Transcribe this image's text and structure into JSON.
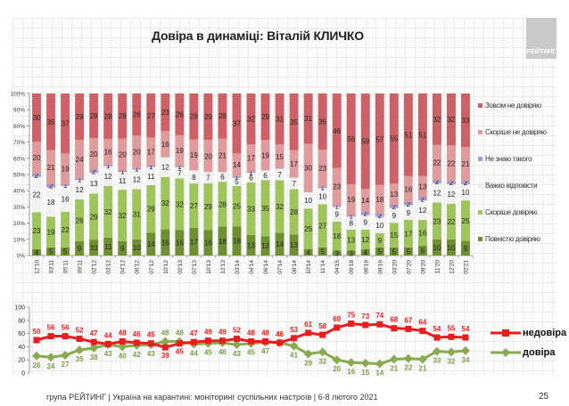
{
  "header": {
    "title": "Довіра в динаміці: Віталій КЛИЧКО",
    "logo_text": "РЕЙТИНГ"
  },
  "footer": {
    "text": "група РЕЙТИНГ | Україна на карантині: моніторинг суспільних настроїв | 6-8 лютого 2021",
    "page_number": "25"
  },
  "colors": {
    "fully_distrust": "#cd6266",
    "rather_distrust": "#e09b9c",
    "dont_know": "#a99ad0",
    "hard_to_say": "#f1f1f1",
    "rather_trust": "#9dc55a",
    "fully_trust": "#6f8f33",
    "line_distrust": "#e81e1e",
    "line_trust": "#8aaa52"
  },
  "chart_data": [
    {
      "type": "bar",
      "stacked": true,
      "percent_stacked": true,
      "title": "Довіра в динаміці: Віталій КЛИЧКО",
      "yticks": [
        "0%",
        "10%",
        "20%",
        "30%",
        "40%",
        "50%",
        "60%",
        "70%",
        "80%",
        "90%",
        "100%"
      ],
      "ylim": [
        0,
        100
      ],
      "legend_position": "right",
      "categories": [
        "12'10",
        "03'11",
        "05'11",
        "09'11",
        "02'12",
        "03'12",
        "04'12",
        "06'12",
        "07'12",
        "10'12",
        "02'13",
        "07'13",
        "10'13",
        "12'13",
        "03'14",
        "04'14",
        "06'14",
        "07'14",
        "08'14",
        "10'14",
        "11'14",
        "04'15",
        "09'18",
        "06'19",
        "09'19",
        "03'20",
        "07'20",
        "09'20",
        "11'20",
        "12'20",
        "02'21"
      ],
      "series": [
        {
          "name": "Повністю довіряю",
          "key": "fully_trust",
          "values": [
            4,
            5,
            5,
            9,
            10,
            11,
            9,
            10,
            14,
            16,
            16,
            17,
            16,
            18,
            18,
            13,
            12,
            14,
            13,
            4,
            5,
            3,
            3,
            4,
            5,
            5,
            5,
            6,
            10,
            10,
            9
          ]
        },
        {
          "name": "Скоріше довіряю",
          "key": "rather_trust",
          "values": [
            23,
            19,
            22,
            26,
            29,
            32,
            32,
            31,
            29,
            32,
            32,
            27,
            29,
            28,
            25,
            33,
            35,
            32,
            28,
            25,
            27,
            18,
            13,
            12,
            9,
            15,
            17,
            16,
            23,
            22,
            25
          ]
        },
        {
          "name": "Важко відповісти",
          "key": "hard_to_say",
          "values": [
            22,
            18,
            16,
            12,
            13,
            12,
            11,
            12,
            11,
            12,
            7,
            8,
            7,
            6,
            5,
            6,
            6,
            7,
            7,
            10,
            10,
            9,
            8,
            9,
            10,
            9,
            9,
            12,
            12,
            12,
            10
          ]
        },
        {
          "name": "Не знаю такого",
          "key": "dont_know",
          "values": [
            2,
            2,
            1,
            1,
            2,
            1,
            1,
            1,
            1,
            0,
            1,
            0,
            0,
            0,
            1,
            1,
            0,
            0,
            0,
            0,
            1,
            1,
            1,
            2,
            2,
            2,
            2,
            2,
            2,
            2,
            2
          ]
        },
        {
          "name": "Скоріше не довіряю",
          "key": "rather_distrust",
          "values": [
            20,
            21,
            19,
            24,
            20,
            16,
            20,
            20,
            17,
            16,
            19,
            19,
            20,
            21,
            14,
            17,
            19,
            15,
            17,
            30,
            23,
            23,
            19,
            14,
            18,
            13,
            16,
            13,
            22,
            22,
            21
          ]
        },
        {
          "name": "Зовсім не довіряю",
          "key": "fully_distrust",
          "values": [
            30,
            35,
            37,
            29,
            28,
            28,
            28,
            26,
            27,
            23,
            26,
            28,
            29,
            28,
            37,
            32,
            29,
            31,
            35,
            31,
            35,
            46,
            56,
            59,
            57,
            55,
            51,
            51,
            32,
            32,
            33
          ]
        }
      ],
      "legend_order": [
        "Зовсім не довіряю",
        "Скоріше не довіряю",
        "Не знаю такого",
        "Важко відповісти",
        "Скоріше довіряю",
        "Повністю довіряю"
      ]
    },
    {
      "type": "line",
      "yticks": [
        "0",
        "20",
        "40",
        "60",
        "80",
        "100"
      ],
      "ylim": [
        0,
        100
      ],
      "legend_position": "right",
      "series": [
        {
          "name": "недовіра",
          "key": "distrust",
          "marker": "square",
          "values": [
            50,
            56,
            56,
            52,
            47,
            44,
            48,
            46,
            45,
            39,
            45,
            47,
            49,
            49,
            52,
            48,
            48,
            46,
            53,
            61,
            58,
            69,
            75,
            73,
            74,
            68,
            67,
            64,
            54,
            55,
            54
          ]
        },
        {
          "name": "довіра",
          "key": "trust",
          "marker": "diamond",
          "values": [
            26,
            24,
            27,
            35,
            38,
            43,
            40,
            42,
            43,
            48,
            48,
            44,
            45,
            46,
            43,
            45,
            47,
            46,
            41,
            29,
            32,
            20,
            16,
            15,
            14,
            21,
            22,
            21,
            33,
            32,
            34
          ]
        }
      ]
    }
  ]
}
